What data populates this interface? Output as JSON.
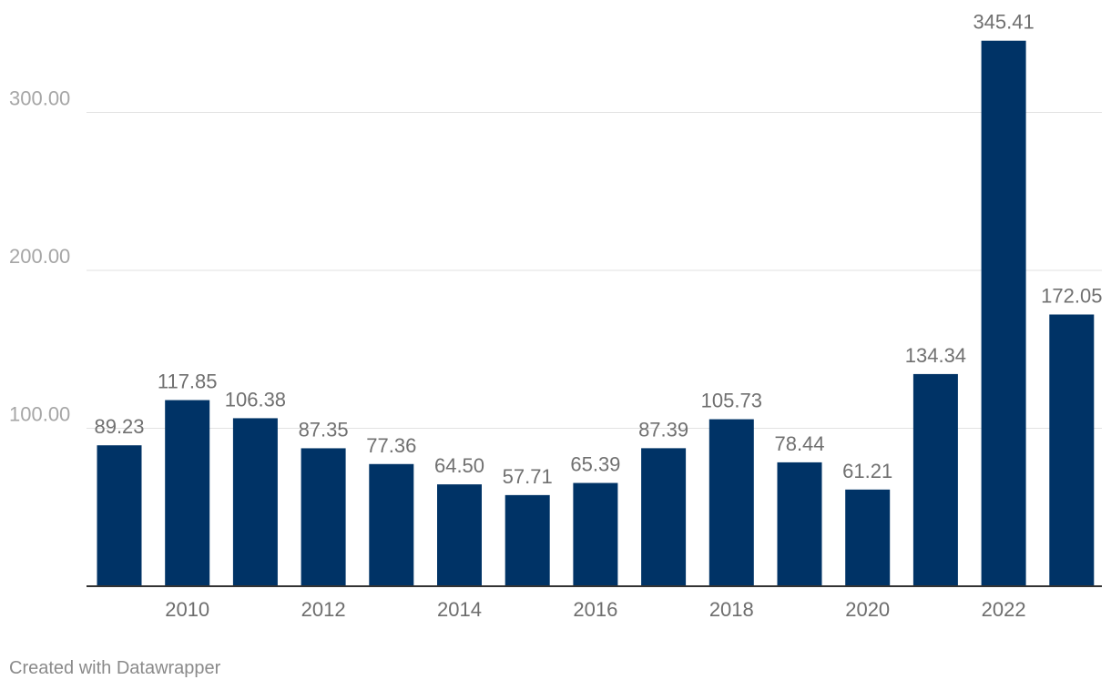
{
  "chart_data": {
    "type": "bar",
    "categories": [
      "2009",
      "2010",
      "2011",
      "2012",
      "2013",
      "2014",
      "2015",
      "2016",
      "2017",
      "2018",
      "2019",
      "2020",
      "2021",
      "2022",
      "2023"
    ],
    "values": [
      89.23,
      117.85,
      106.38,
      87.35,
      77.36,
      64.5,
      57.71,
      65.39,
      87.39,
      105.73,
      78.44,
      61.21,
      134.34,
      345.41,
      172.05
    ],
    "value_labels": [
      "89.23",
      "117.85",
      "106.38",
      "87.35",
      "77.36",
      "64.50",
      "57.71",
      "65.39",
      "87.39",
      "105.73",
      "78.44",
      "61.21",
      "134.34",
      "345.41",
      "172.05"
    ],
    "x_tick_labels": [
      "2010",
      "2012",
      "2014",
      "2016",
      "2018",
      "2020",
      "2022"
    ],
    "y_ticks": [
      100,
      200,
      300
    ],
    "y_tick_labels": [
      "100.00",
      "200.00",
      "300.00"
    ],
    "ylim": [
      0,
      345.41
    ],
    "grid": true,
    "bar_color": "#003366",
    "title": "",
    "xlabel": "",
    "ylabel": ""
  },
  "footer": {
    "credit": "Created with Datawrapper"
  }
}
